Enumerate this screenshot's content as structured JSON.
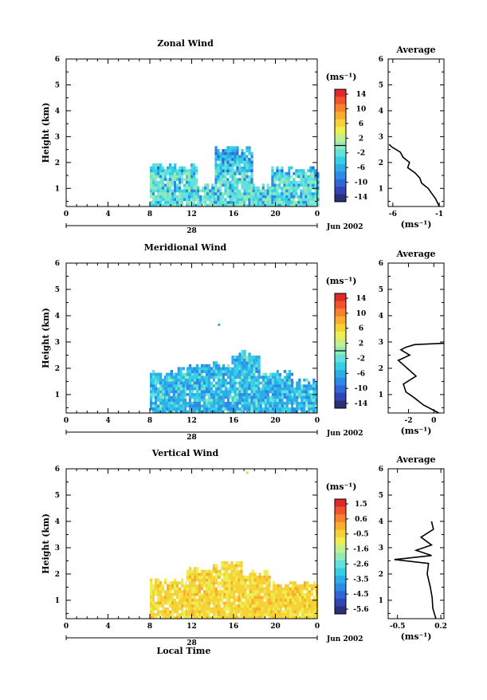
{
  "colors": {
    "scale": [
      "#2a2f7a",
      "#3245b4",
      "#2f66d8",
      "#2c8be6",
      "#2daee9",
      "#37cfe6",
      "#62e1dd",
      "#93eab9",
      "#c3ef8a",
      "#ecee52",
      "#f7d236",
      "#f9ad2c",
      "#f7822b",
      "#f2532c",
      "#e02a2a"
    ]
  },
  "chart_data": [
    {
      "type": "heatmap",
      "title": "Zonal Wind",
      "xlabel": "",
      "ylabel": "Height (km)",
      "xlim": [
        0,
        24
      ],
      "ylim": [
        0.3,
        6
      ],
      "xticks": [
        "0",
        "4",
        "8",
        "12",
        "16",
        "20",
        "0"
      ],
      "yticks": [
        "1",
        "2",
        "3",
        "4",
        "5",
        "6"
      ],
      "date_day": "28",
      "date_month": "Jun 2002",
      "colorbar": {
        "unit": "(ms⁻¹)",
        "range": [
          -16,
          16
        ],
        "labels": [
          "14",
          "10",
          "6",
          "2",
          "-2",
          "-6",
          "-10",
          "-14"
        ],
        "marker": 0
      },
      "blocks": [
        {
          "x": [
            8,
            12.5
          ],
          "ymax": 1.9
        },
        {
          "x": [
            12.5,
            14.2
          ],
          "ymax": 1.1
        },
        {
          "x": [
            14.2,
            17.8
          ],
          "ymax": 2.6
        },
        {
          "x": [
            17.8,
            19.6
          ],
          "ymax": 1.1
        },
        {
          "x": [
            19.6,
            24
          ],
          "ymax": 1.8
        }
      ],
      "average": {
        "title": "Average",
        "xlabel": "(ms⁻¹)",
        "xlim": [
          -6.5,
          -0.5
        ],
        "xticks": [
          "-6",
          "-1"
        ],
        "ylim": [
          0.3,
          6
        ],
        "yticks": [
          "1",
          "2",
          "3",
          "4",
          "5",
          "6"
        ],
        "x": [
          -1.0,
          -1.4,
          -1.8,
          -2.2,
          -2.9,
          -3.1,
          -3.6,
          -4.4,
          -4.2,
          -4.9,
          -5.2,
          -6.1,
          -6.4
        ],
        "y": [
          0.3,
          0.6,
          0.8,
          1.0,
          1.2,
          1.4,
          1.6,
          1.8,
          2.0,
          2.2,
          2.4,
          2.6,
          2.7
        ]
      }
    },
    {
      "type": "heatmap",
      "title": "Meridional Wind",
      "xlabel": "",
      "ylabel": "Height (km)",
      "xlim": [
        0,
        24
      ],
      "ylim": [
        0.3,
        6
      ],
      "xticks": [
        "0",
        "4",
        "8",
        "12",
        "16",
        "20",
        "0"
      ],
      "yticks": [
        "1",
        "2",
        "3",
        "4",
        "5",
        "6"
      ],
      "date_day": "28",
      "date_month": "Jun 2002",
      "colorbar": {
        "unit": "(ms⁻¹)",
        "range": [
          -16,
          16
        ],
        "labels": [
          "14",
          "10",
          "6",
          "2",
          "-2",
          "-6",
          "-10",
          "-14"
        ],
        "marker": 0
      },
      "blocks": [
        {
          "x": [
            8,
            9.5
          ],
          "ymax": 1.9
        },
        {
          "x": [
            9.5,
            11.5
          ],
          "ymax": 2.0
        },
        {
          "x": [
            11.5,
            15.8
          ],
          "ymax": 2.2
        },
        {
          "x": [
            15.8,
            18.5
          ],
          "ymax": 2.6
        },
        {
          "x": [
            18.5,
            21.5
          ],
          "ymax": 1.9
        },
        {
          "x": [
            21.5,
            24
          ],
          "ymax": 1.6
        }
      ],
      "average": {
        "title": "Average",
        "xlabel": "(ms⁻¹)",
        "xlim": [
          -3.6,
          0.8
        ],
        "xticks": [
          "-2",
          "0"
        ],
        "ylim": [
          0.3,
          6
        ],
        "yticks": [
          "1",
          "2",
          "3",
          "4",
          "5",
          "6"
        ],
        "x": [
          0.4,
          -0.8,
          -1.6,
          -2.2,
          -2.4,
          -1.4,
          -2.1,
          -2.8,
          -1.9,
          -2.6,
          -2.2,
          -1.5,
          0.8
        ],
        "y": [
          0.3,
          0.6,
          0.9,
          1.1,
          1.4,
          1.7,
          2.0,
          2.3,
          2.5,
          2.7,
          2.8,
          2.9,
          2.95
        ]
      }
    },
    {
      "type": "heatmap",
      "title": "Vertical Wind",
      "xlabel": "Local Time",
      "ylabel": "Height (km)",
      "xlim": [
        0,
        24
      ],
      "ylim": [
        0.3,
        6
      ],
      "xticks": [
        "0",
        "4",
        "8",
        "12",
        "16",
        "20",
        "0"
      ],
      "yticks": [
        "1",
        "2",
        "3",
        "4",
        "5",
        "6"
      ],
      "date_day": "28",
      "date_month": "Jun 2002",
      "colorbar": {
        "unit": "(ms⁻¹)",
        "range": [
          -6,
          2
        ],
        "labels": [
          "1.5",
          "0.6",
          "-0.5",
          "-1.6",
          "-2.6",
          "-3.5",
          "-4.5",
          "-5.6"
        ],
        "marker": null
      },
      "blocks": [
        {
          "x": [
            8,
            11.5
          ],
          "ymax": 1.8
        },
        {
          "x": [
            11.5,
            14.8
          ],
          "ymax": 2.3
        },
        {
          "x": [
            14.8,
            16.8
          ],
          "ymax": 2.5
        },
        {
          "x": [
            16.8,
            19.5
          ],
          "ymax": 2.1
        },
        {
          "x": [
            19.5,
            24
          ],
          "ymax": 1.7
        }
      ],
      "average": {
        "title": "Average",
        "xlabel": "(ms⁻¹)",
        "xlim": [
          -0.65,
          0.25
        ],
        "xticks": [
          "-0.5",
          "0.2"
        ],
        "ylim": [
          0.3,
          6
        ],
        "yticks": [
          "1",
          "2",
          "3",
          "4",
          "5",
          "6"
        ],
        "x": [
          0.12,
          0.07,
          0.06,
          0.03,
          -0.02,
          0.0,
          -0.55,
          0.05,
          -0.2,
          0.05,
          -0.12,
          0.08,
          0.05
        ],
        "y": [
          0.3,
          0.7,
          1.1,
          1.5,
          2.0,
          2.4,
          2.55,
          2.7,
          2.9,
          3.1,
          3.4,
          3.7,
          4.0
        ]
      }
    }
  ]
}
